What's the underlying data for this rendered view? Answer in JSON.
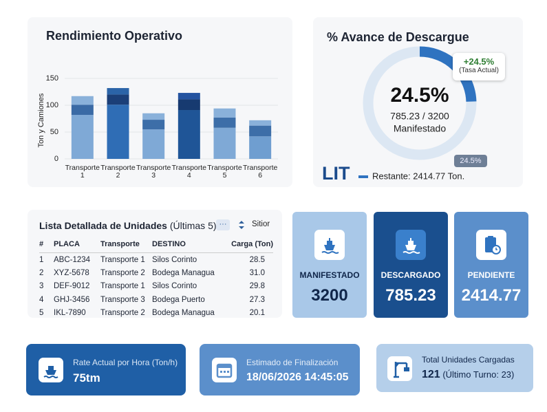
{
  "chart_data": [
    {
      "type": "bar",
      "stacked": true,
      "title": "Rendimiento Operativo",
      "y_label": "Ton y Camiones",
      "categories": [
        "Transporte 1",
        "Transporte 2",
        "Transporte 3",
        "Transporte 4",
        "Transporte 5",
        "Transporte 6"
      ],
      "series": [
        {
          "values": [
            82,
            101,
            55,
            91,
            58,
            42
          ],
          "colors": [
            "#7fa9d6",
            "#2f6db5",
            "#7fa9d6",
            "#1f5597",
            "#7fa9d6",
            "#6f9ed0"
          ]
        },
        {
          "values": [
            19,
            19,
            18,
            20,
            19,
            20
          ],
          "colors": [
            "#3a6aa5",
            "#1b3f78",
            "#3d6ea8",
            "#173a70",
            "#3d6ea8",
            "#3d6ea8"
          ]
        },
        {
          "values": [
            16,
            12,
            12,
            12,
            17,
            10
          ],
          "colors": [
            "#8ab1da",
            "#2b64a8",
            "#8ab1da",
            "#2453a0",
            "#8ab1da",
            "#8ab1da"
          ]
        }
      ],
      "ylim": [
        0,
        150
      ],
      "yticks": [
        0,
        50,
        100,
        150
      ],
      "grid": true
    },
    {
      "type": "donut",
      "title": "% Avance de Descargue",
      "values": [
        24.5
      ],
      "value_labels": [
        "24.5%"
      ],
      "color": "#2f73c0",
      "track_color": "#dce7f3",
      "center_text": "785.23 / 3200",
      "center_subtext": "Manifestado",
      "badge": {
        "value": "+24.5%",
        "caption": "(Tasa Actual)"
      },
      "marker_label": "24.5%",
      "legend": {
        "label": "LIT",
        "text": "Restante: 2414.77 Ton."
      }
    }
  ],
  "table": {
    "title": "Lista Detallada de Unidades",
    "subtitle": "(Últimas 5)",
    "more": "···",
    "sort": "Sitior",
    "columns": [
      "#",
      "PLACA",
      "Transporte",
      "DESTINO",
      "Carga (Ton)"
    ],
    "rows": [
      [
        "1",
        "ABC-1234",
        "Transporte 1",
        "Silos Corinto",
        "28.5"
      ],
      [
        "2",
        "XYZ-5678",
        "Transporte 2",
        "Bodega Managua",
        "31.0"
      ],
      [
        "3",
        "DEF-9012",
        "Transporte 1",
        "Silos Corinto",
        "29.8"
      ],
      [
        "4",
        "GHJ-3456",
        "Transporte 3",
        "Bodega Puerto",
        "27.3"
      ],
      [
        "5",
        "IKL-7890",
        "Transporte 2",
        "Bodega Managua",
        "20.1"
      ]
    ]
  },
  "stats": [
    {
      "label": "MANIFESTADO",
      "value": "3200"
    },
    {
      "label": "DESCARGADO",
      "value": "785.23"
    },
    {
      "label": "PENDIENTE",
      "value": "2414.77"
    }
  ],
  "kpis": [
    {
      "label": "Rate Actual por Hora (Ton/h)",
      "value": "75tm"
    },
    {
      "label": "Estimado de Finalización",
      "value": "18/06/2026 14:45:05"
    },
    {
      "label": "Total Unidades Cargadas",
      "value": "121",
      "note": "(Último Turno: 23)"
    }
  ]
}
